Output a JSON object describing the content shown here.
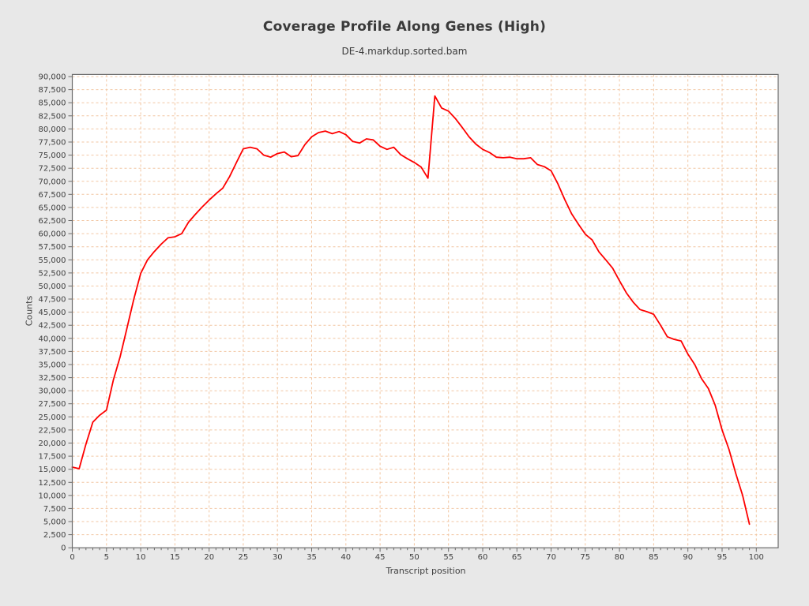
{
  "title": "Coverage Profile Along Genes (High)",
  "subtitle": "DE-4.markdup.sorted.bam",
  "chart_data": {
    "type": "line",
    "title": "Coverage Profile Along Genes (High)",
    "subtitle": "DE-4.markdup.sorted.bam",
    "xlabel": "Transcript position",
    "ylabel": "Counts",
    "xlim": [
      0,
      103.2
    ],
    "ylim": [
      0,
      90400
    ],
    "grid": true,
    "legend_position": "none",
    "line_color": "#fe0000",
    "grid_color": "#f2c6a2",
    "plot_background": "#ffffff",
    "page_background": "#e8e8e8",
    "x_ticks": [
      0,
      5,
      10,
      15,
      20,
      25,
      30,
      35,
      40,
      45,
      50,
      55,
      60,
      65,
      70,
      75,
      80,
      85,
      90,
      95,
      100
    ],
    "y_ticks": [
      0,
      2500,
      5000,
      7500,
      10000,
      12500,
      15000,
      17500,
      20000,
      22500,
      25000,
      27500,
      30000,
      32500,
      35000,
      37500,
      40000,
      42500,
      45000,
      47500,
      50000,
      52500,
      55000,
      57500,
      60000,
      62500,
      65000,
      67500,
      70000,
      72500,
      75000,
      77500,
      80000,
      82500,
      85000,
      87500,
      90000
    ],
    "x": [
      0,
      1,
      2,
      3,
      4,
      5,
      6,
      7,
      8,
      9,
      10,
      11,
      12,
      13,
      14,
      15,
      16,
      17,
      18,
      19,
      20,
      21,
      22,
      23,
      24,
      25,
      26,
      27,
      28,
      29,
      30,
      31,
      32,
      33,
      34,
      35,
      36,
      37,
      38,
      39,
      40,
      41,
      42,
      43,
      44,
      45,
      46,
      47,
      48,
      49,
      50,
      51,
      52,
      53,
      54,
      55,
      56,
      57,
      58,
      59,
      60,
      61,
      62,
      63,
      64,
      65,
      66,
      67,
      68,
      69,
      70,
      71,
      72,
      73,
      74,
      75,
      76,
      77,
      78,
      79,
      80,
      81,
      82,
      83,
      84,
      85,
      86,
      87,
      88,
      89,
      90,
      91,
      92,
      93,
      94,
      95,
      96,
      97,
      98,
      99
    ],
    "series": [
      {
        "name": "DE-4.markdup.sorted.bam",
        "values": [
          15400,
          15100,
          19800,
          24000,
          25300,
          26300,
          32000,
          36500,
          42000,
          47500,
          52400,
          55000,
          56600,
          58000,
          59200,
          59400,
          60000,
          62200,
          63700,
          65100,
          66400,
          67600,
          68700,
          70900,
          73600,
          76200,
          76500,
          76200,
          75000,
          74600,
          75300,
          75600,
          74700,
          74900,
          77000,
          78500,
          79300,
          79600,
          79100,
          79500,
          78900,
          77600,
          77300,
          78100,
          77900,
          76700,
          76100,
          76500,
          75100,
          74300,
          73600,
          72700,
          70600,
          86300,
          84000,
          83400,
          82000,
          80300,
          78500,
          77100,
          76100,
          75500,
          74600,
          74500,
          74600,
          74300,
          74300,
          74500,
          73200,
          72800,
          72000,
          69500,
          66500,
          63800,
          61800,
          59900,
          58800,
          56500,
          55000,
          53400,
          51000,
          48700,
          46900,
          45500,
          45100,
          44600,
          42500,
          40300,
          39800,
          39500,
          37000,
          35000,
          32300,
          30400,
          27200,
          22500,
          18800,
          14200,
          10000,
          4500
        ]
      }
    ]
  }
}
